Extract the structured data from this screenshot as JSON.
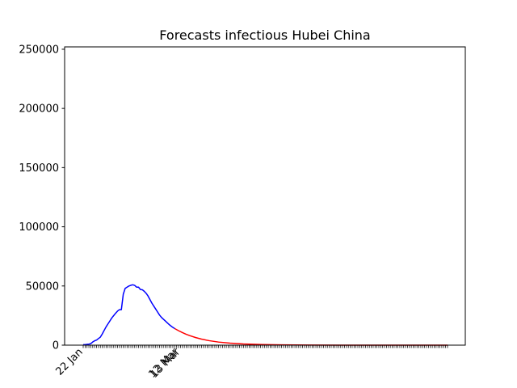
{
  "chart_data": {
    "type": "line",
    "title": "Forecasts infectious Hubei China",
    "xlabel": "",
    "ylabel": "",
    "x_range": [
      "2020-01-22",
      "2020-07-31"
    ],
    "ylim": [
      0,
      252000
    ],
    "yticks": [
      0,
      50000,
      100000,
      150000,
      200000,
      250000
    ],
    "xtick_labels": [
      {
        "date": "2020-01-22",
        "label": "22 Jan"
      },
      {
        "date": "2020-03-12",
        "label": "12 Mar"
      },
      {
        "date": "2020-03-13",
        "label": "13 Mar"
      }
    ],
    "minor_ticks": "daily",
    "grid": false,
    "legend": "none",
    "series": [
      {
        "color": "#0000ff",
        "points": [
          [
            "2020-01-22",
            400
          ],
          [
            "2020-01-23",
            450
          ],
          [
            "2020-01-24",
            650
          ],
          [
            "2020-01-25",
            900
          ],
          [
            "2020-01-26",
            1300
          ],
          [
            "2020-01-27",
            2700
          ],
          [
            "2020-01-28",
            3700
          ],
          [
            "2020-01-29",
            4300
          ],
          [
            "2020-01-30",
            5600
          ],
          [
            "2020-01-31",
            6800
          ],
          [
            "2020-02-01",
            9500
          ],
          [
            "2020-02-02",
            12500
          ],
          [
            "2020-02-03",
            15500
          ],
          [
            "2020-02-04",
            18000
          ],
          [
            "2020-02-05",
            20500
          ],
          [
            "2020-02-06",
            23000
          ],
          [
            "2020-02-07",
            25000
          ],
          [
            "2020-02-08",
            27000
          ],
          [
            "2020-02-09",
            28800
          ],
          [
            "2020-02-10",
            30000
          ],
          [
            "2020-02-11",
            30000
          ],
          [
            "2020-02-12",
            43000
          ],
          [
            "2020-02-13",
            48000
          ],
          [
            "2020-02-14",
            49000
          ],
          [
            "2020-02-15",
            50000
          ],
          [
            "2020-02-16",
            50600
          ],
          [
            "2020-02-17",
            51000
          ],
          [
            "2020-02-18",
            50500
          ],
          [
            "2020-02-19",
            49000
          ],
          [
            "2020-02-20",
            49000
          ],
          [
            "2020-02-21",
            47000
          ],
          [
            "2020-02-22",
            46800
          ],
          [
            "2020-02-23",
            45500
          ],
          [
            "2020-02-24",
            43800
          ],
          [
            "2020-02-25",
            41500
          ],
          [
            "2020-02-26",
            38500
          ],
          [
            "2020-02-27",
            35500
          ],
          [
            "2020-02-28",
            33000
          ],
          [
            "2020-02-29",
            30500
          ],
          [
            "2020-03-01",
            28000
          ],
          [
            "2020-03-02",
            25500
          ],
          [
            "2020-03-03",
            23500
          ],
          [
            "2020-03-04",
            22000
          ],
          [
            "2020-03-05",
            20500
          ],
          [
            "2020-03-06",
            19000
          ],
          [
            "2020-03-07",
            17500
          ],
          [
            "2020-03-08",
            16200
          ],
          [
            "2020-03-09",
            15000
          ],
          [
            "2020-03-10",
            14000
          ]
        ]
      },
      {
        "color": "#ff0000",
        "points": [
          [
            "2020-03-10",
            14000
          ],
          [
            "2020-03-12",
            12200
          ],
          [
            "2020-03-14",
            10600
          ],
          [
            "2020-03-16",
            9200
          ],
          [
            "2020-03-18",
            8000
          ],
          [
            "2020-03-21",
            6400
          ],
          [
            "2020-03-24",
            5100
          ],
          [
            "2020-03-28",
            3800
          ],
          [
            "2020-04-02",
            2600
          ],
          [
            "2020-04-08",
            1700
          ],
          [
            "2020-04-15",
            1000
          ],
          [
            "2020-04-25",
            500
          ],
          [
            "2020-05-05",
            250
          ],
          [
            "2020-05-20",
            100
          ],
          [
            "2020-06-05",
            40
          ],
          [
            "2020-06-25",
            15
          ],
          [
            "2020-07-15",
            5
          ],
          [
            "2020-07-31",
            2
          ]
        ]
      }
    ]
  }
}
